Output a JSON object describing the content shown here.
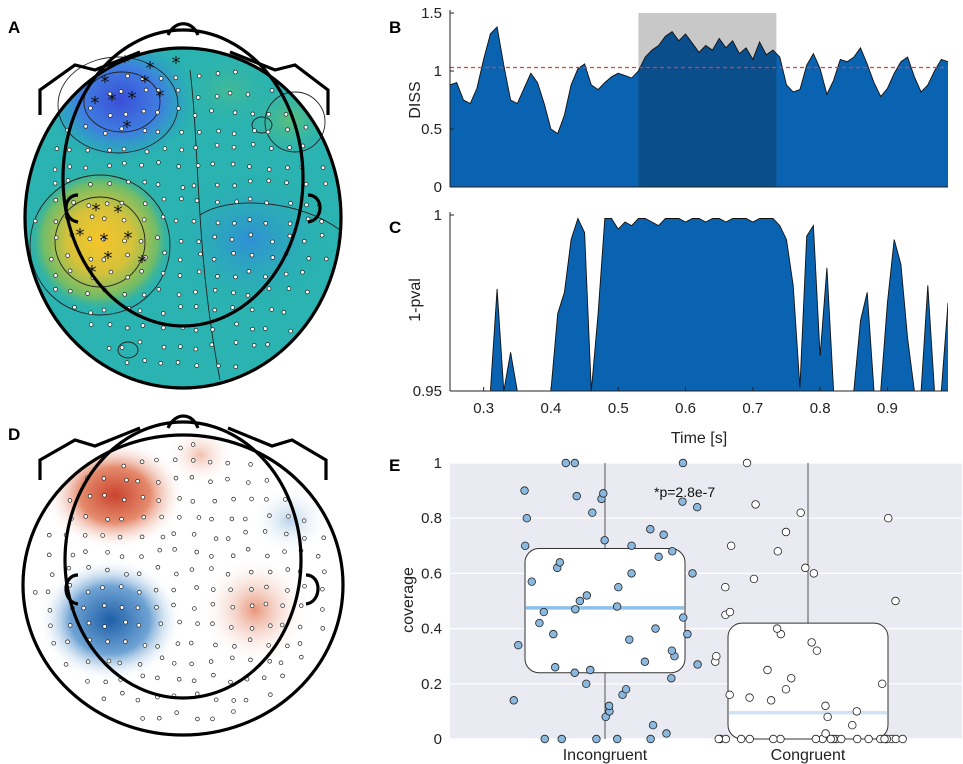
{
  "panels": {
    "A": {
      "letter": "A"
    },
    "B": {
      "letter": "B"
    },
    "C": {
      "letter": "C"
    },
    "D": {
      "letter": "D"
    },
    "E": {
      "letter": "E"
    }
  },
  "colors": {
    "area_fill": "#0a63b0",
    "highlight_fill": "#c8c8c8",
    "highlight_area": "#0b4e8c",
    "threshold_line": "#e8393f",
    "box_bg": "#eaebf2",
    "incongruent_dot": "#8ab8de",
    "median_incongruent": "#8ec1ea",
    "median_congruent": "#cfe3f5"
  },
  "chart_data": [
    {
      "panel": "B",
      "type": "area",
      "ylabel": "DISS",
      "ylim": [
        0,
        1.5
      ],
      "yticks": [
        "0",
        "0.5",
        "1",
        "1.5"
      ],
      "xlim": [
        0.25,
        0.99
      ],
      "threshold": 1.03,
      "highlight_window": [
        0.53,
        0.735
      ],
      "x": [
        0.25,
        0.26,
        0.27,
        0.28,
        0.29,
        0.3,
        0.31,
        0.32,
        0.33,
        0.34,
        0.35,
        0.36,
        0.37,
        0.38,
        0.39,
        0.4,
        0.41,
        0.42,
        0.43,
        0.44,
        0.45,
        0.46,
        0.47,
        0.48,
        0.49,
        0.5,
        0.51,
        0.52,
        0.53,
        0.54,
        0.55,
        0.56,
        0.57,
        0.58,
        0.59,
        0.6,
        0.61,
        0.62,
        0.63,
        0.64,
        0.65,
        0.66,
        0.67,
        0.68,
        0.69,
        0.7,
        0.71,
        0.72,
        0.73,
        0.74,
        0.75,
        0.76,
        0.77,
        0.78,
        0.79,
        0.8,
        0.81,
        0.82,
        0.83,
        0.84,
        0.85,
        0.86,
        0.87,
        0.88,
        0.89,
        0.9,
        0.91,
        0.92,
        0.93,
        0.94,
        0.95,
        0.96,
        0.97,
        0.98,
        0.99
      ],
      "values": [
        0.88,
        0.9,
        0.75,
        0.72,
        0.85,
        1.1,
        1.32,
        1.38,
        1.05,
        0.75,
        0.72,
        0.85,
        0.98,
        0.9,
        0.72,
        0.5,
        0.46,
        0.62,
        0.88,
        1.02,
        1.06,
        0.88,
        0.84,
        0.9,
        0.95,
        0.98,
        0.96,
        0.94,
        1.0,
        1.12,
        1.18,
        1.22,
        1.3,
        1.34,
        1.26,
        1.32,
        1.24,
        1.16,
        1.22,
        1.18,
        1.28,
        1.2,
        1.26,
        1.15,
        1.2,
        1.1,
        1.25,
        1.14,
        1.18,
        1.12,
        0.88,
        0.82,
        0.84,
        1.05,
        1.15,
        1.02,
        0.8,
        0.92,
        1.1,
        1.08,
        1.12,
        1.2,
        1.06,
        0.9,
        0.78,
        0.85,
        0.98,
        1.08,
        1.12,
        0.95,
        0.82,
        0.88,
        1.0,
        1.1,
        1.08
      ]
    },
    {
      "panel": "C",
      "type": "area",
      "xlabel": "Time [s]",
      "ylabel": "1-pval",
      "ylim": [
        0.95,
        1
      ],
      "yticks": [
        "0.95",
        "1"
      ],
      "xlim": [
        0.25,
        0.99
      ],
      "xticks": [
        "0.3",
        "0.4",
        "0.5",
        "0.6",
        "0.7",
        "0.8",
        "0.9"
      ],
      "x": [
        0.25,
        0.26,
        0.27,
        0.28,
        0.29,
        0.3,
        0.31,
        0.32,
        0.33,
        0.34,
        0.35,
        0.36,
        0.37,
        0.38,
        0.39,
        0.4,
        0.41,
        0.42,
        0.43,
        0.44,
        0.45,
        0.46,
        0.47,
        0.48,
        0.49,
        0.5,
        0.51,
        0.52,
        0.53,
        0.54,
        0.55,
        0.56,
        0.57,
        0.58,
        0.59,
        0.6,
        0.61,
        0.62,
        0.63,
        0.64,
        0.65,
        0.66,
        0.67,
        0.68,
        0.69,
        0.7,
        0.71,
        0.72,
        0.73,
        0.74,
        0.75,
        0.76,
        0.77,
        0.78,
        0.79,
        0.8,
        0.81,
        0.82,
        0.83,
        0.84,
        0.85,
        0.86,
        0.87,
        0.88,
        0.89,
        0.9,
        0.91,
        0.92,
        0.93,
        0.94,
        0.95,
        0.96,
        0.97,
        0.98,
        0.99
      ],
      "values": [
        0.95,
        0.95,
        0.95,
        0.95,
        0.95,
        0.95,
        0.95,
        0.979,
        0.95,
        0.961,
        0.95,
        0.95,
        0.95,
        0.95,
        0.95,
        0.95,
        0.972,
        0.978,
        0.993,
        0.999,
        0.995,
        0.95,
        0.972,
        0.999,
        0.999,
        0.996,
        0.998,
        0.997,
        0.999,
        0.999,
        0.998,
        0.997,
        0.999,
        0.999,
        0.999,
        0.998,
        0.999,
        0.999,
        0.998,
        0.999,
        0.999,
        0.998,
        0.999,
        0.999,
        0.999,
        0.998,
        0.999,
        0.999,
        0.999,
        0.997,
        0.993,
        0.98,
        0.951,
        0.994,
        0.997,
        0.96,
        0.985,
        0.95,
        0.95,
        0.95,
        0.95,
        0.97,
        0.978,
        0.95,
        0.95,
        0.975,
        0.993,
        0.986,
        0.965,
        0.95,
        0.95,
        0.98,
        0.95,
        0.95,
        0.975
      ]
    },
    {
      "panel": "E",
      "type": "box",
      "ylabel": "coverage",
      "ylim": [
        0,
        1
      ],
      "yticks": [
        "0",
        "0.2",
        "0.4",
        "0.6",
        "0.8",
        "1"
      ],
      "categories": [
        "Incongruent",
        "Congruent"
      ],
      "annotation": "*p=2.8e-7",
      "boxes": [
        {
          "name": "Incongruent",
          "q1": 0.24,
          "median": 0.475,
          "q3": 0.69,
          "whisker_low": 0,
          "whisker_high": 1
        },
        {
          "name": "Congruent",
          "q1": 0.0,
          "median": 0.095,
          "q3": 0.42,
          "whisker_low": 0,
          "whisker_high": 1
        }
      ],
      "points_incongruent": [
        0.0,
        0.0,
        0.0,
        0.0,
        0.0,
        0.02,
        0.05,
        0.08,
        0.1,
        0.12,
        0.14,
        0.16,
        0.18,
        0.2,
        0.22,
        0.24,
        0.25,
        0.26,
        0.27,
        0.28,
        0.3,
        0.32,
        0.34,
        0.36,
        0.38,
        0.38,
        0.4,
        0.42,
        0.44,
        0.46,
        0.47,
        0.48,
        0.5,
        0.52,
        0.55,
        0.57,
        0.6,
        0.6,
        0.62,
        0.64,
        0.66,
        0.68,
        0.7,
        0.7,
        0.72,
        0.74,
        0.76,
        0.8,
        0.82,
        0.84,
        0.86,
        0.87,
        0.88,
        0.89,
        0.9,
        1.0,
        1.0,
        1.0
      ],
      "points_congruent": [
        0,
        0,
        0,
        0,
        0,
        0,
        0,
        0,
        0,
        0,
        0,
        0,
        0,
        0,
        0,
        0,
        0,
        0,
        0,
        0,
        0,
        0,
        0.02,
        0.05,
        0.08,
        0.1,
        0.12,
        0.14,
        0.15,
        0.16,
        0.18,
        0.2,
        0.22,
        0.25,
        0.28,
        0.3,
        0.32,
        0.35,
        0.38,
        0.4,
        0.45,
        0.46,
        0.5,
        0.55,
        0.58,
        0.6,
        0.62,
        0.68,
        0.7,
        0.75,
        0.8,
        0.82,
        0.85,
        1.0
      ]
    }
  ]
}
